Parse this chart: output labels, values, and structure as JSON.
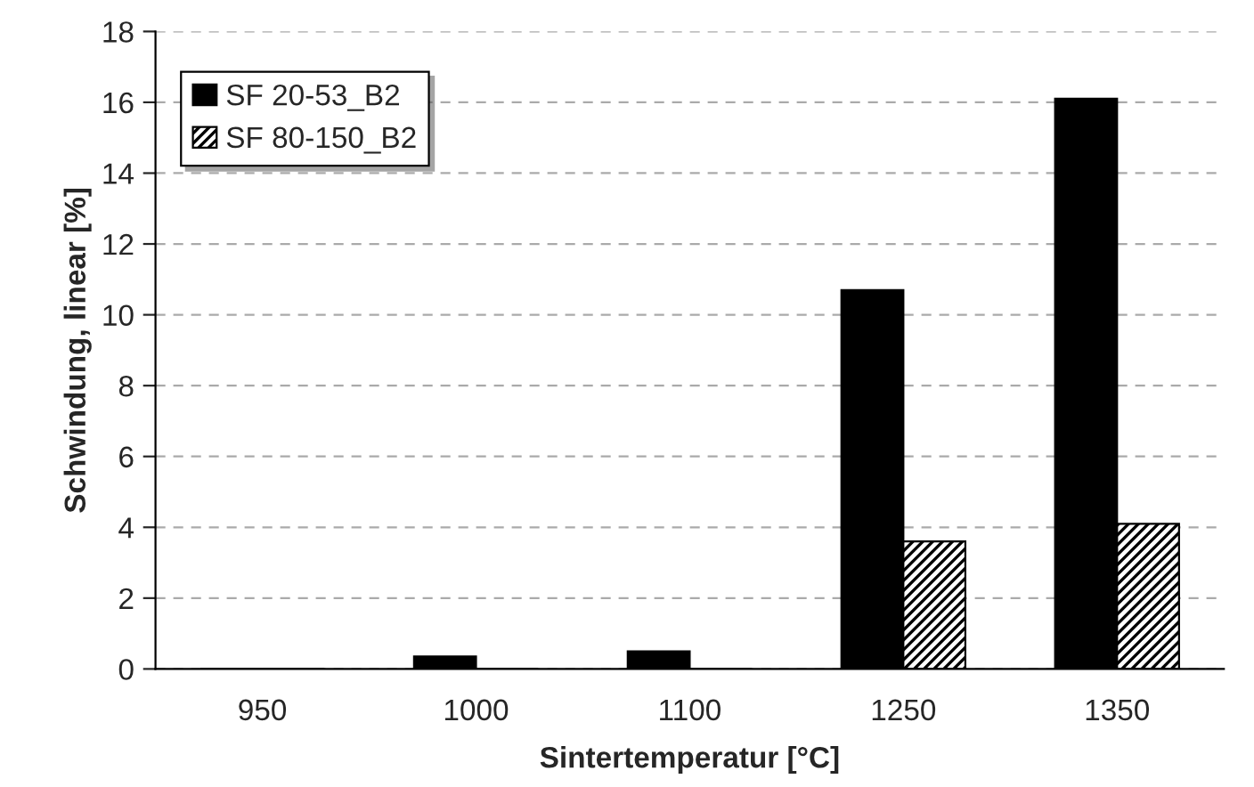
{
  "chart_data": {
    "type": "bar",
    "xlabel": "Sintertemperatur [°C]",
    "ylabel": "Schwindung, linear [%]",
    "categories": [
      "950",
      "1000",
      "1100",
      "1250",
      "1350"
    ],
    "series": [
      {
        "name": "SF 20-53_B2",
        "color": "#000000",
        "values": [
          0,
          0.35,
          0.5,
          10.7,
          16.1
        ]
      },
      {
        "name": "SF 80-150_B2",
        "color": "#000000",
        "values": [
          0,
          0,
          0,
          3.6,
          4.1
        ]
      }
    ],
    "ylim": [
      0,
      18
    ],
    "yticks": [
      0,
      2,
      4,
      6,
      8,
      10,
      12,
      14,
      16,
      18
    ],
    "grid": "y",
    "legend": "top left"
  }
}
